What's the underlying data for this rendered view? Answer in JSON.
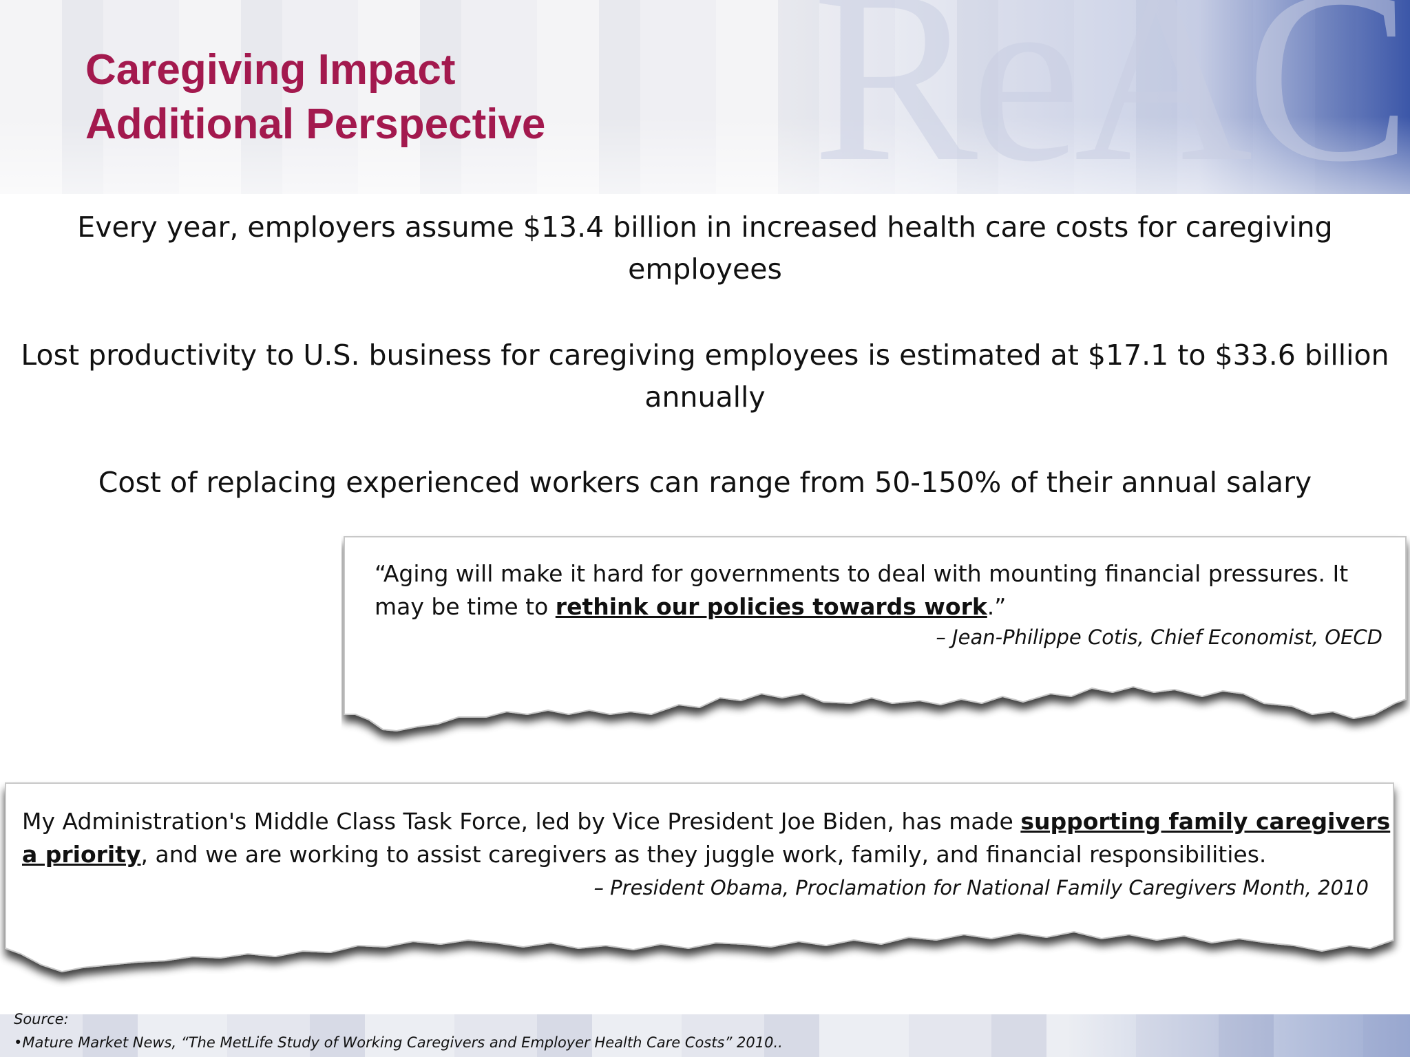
{
  "title": {
    "line1": "Caregiving Impact",
    "line2": "Additional Perspective"
  },
  "watermark_text": "ReAC",
  "stats": [
    "Every year, employers assume $13.4 billion in increased health care costs for caregiving employees",
    "Lost productivity to U.S. business for caregiving employees is estimated at $17.1 to $33.6 billion annually",
    "Cost of replacing experienced workers can range from 50-150% of their annual salary"
  ],
  "quote1": {
    "before": "“Aging will make it hard for governments to deal with mounting financial pressures. It may be time to ",
    "emphasis": "rethink our policies towards work",
    "after": ".”",
    "attribution": "– Jean-Philippe Cotis, Chief Economist, OECD"
  },
  "quote2": {
    "before": "My Administration's Middle Class Task Force, led by Vice President Joe Biden, has made ",
    "emphasis": "supporting family caregivers a priority",
    "after": ", and we are working to assist caregivers as they juggle work, family, and financial responsibilities.",
    "attribution": "–  President Obama, Proclamation for National Family Caregivers Month, 2010"
  },
  "source": {
    "label": "Source:",
    "citation": "•Mature Market News, “The MetLife Study of Working Caregivers and Employer Health Care Costs” 2010.."
  },
  "colors": {
    "title": "#a3194e",
    "header_accent": "#28469f"
  }
}
